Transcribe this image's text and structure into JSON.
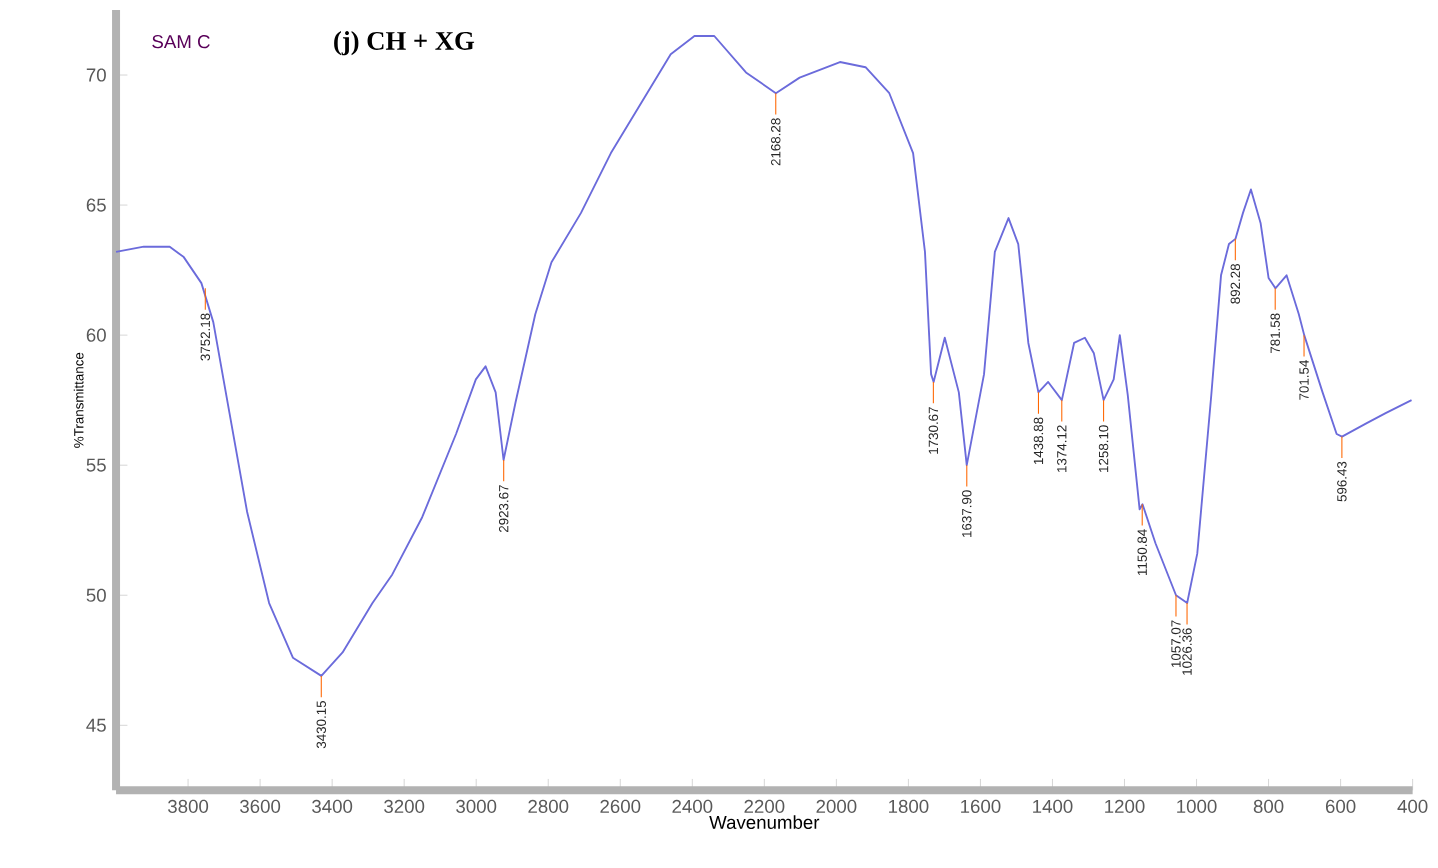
{
  "chart_data": {
    "type": "line",
    "title": "(j) CH + XG",
    "xlabel": "Wavenumber",
    "ylabel": "%Transmittance",
    "xlim": [
      4000,
      400
    ],
    "ylim": [
      42.5,
      72.5
    ],
    "xticks": [
      3800,
      3600,
      3400,
      3200,
      3000,
      2800,
      2600,
      2400,
      2200,
      2000,
      1800,
      1600,
      1400,
      1200,
      1000,
      800,
      600,
      400
    ],
    "yticks": [
      45,
      50,
      55,
      60,
      65,
      70
    ],
    "grid": false,
    "annotations": [
      "SAM C",
      {
        "text": "3752.18",
        "x": 3752.18,
        "y": 61.8
      },
      {
        "text": "3430.15",
        "x": 3430.15,
        "y": 46.9
      },
      {
        "text": "2923.67",
        "x": 2923.67,
        "y": 55.2
      },
      {
        "text": "2168.28",
        "x": 2168.28,
        "y": 69.3
      },
      {
        "text": "1730.67",
        "x": 1730.67,
        "y": 58.2
      },
      {
        "text": "1637.90",
        "x": 1637.9,
        "y": 55.0
      },
      {
        "text": "1438.88",
        "x": 1438.88,
        "y": 57.8
      },
      {
        "text": "1374.12",
        "x": 1374.12,
        "y": 57.5
      },
      {
        "text": "1258.10",
        "x": 1258.1,
        "y": 57.5
      },
      {
        "text": "1150.84",
        "x": 1150.84,
        "y": 53.5
      },
      {
        "text": "1057.07",
        "x": 1057.07,
        "y": 50.0
      },
      {
        "text": "1026.36",
        "x": 1026.36,
        "y": 49.7
      },
      {
        "text": "892.28",
        "x": 892.28,
        "y": 63.7
      },
      {
        "text": "781.58",
        "x": 781.58,
        "y": 61.8
      },
      {
        "text": "701.54",
        "x": 701.54,
        "y": 60.0
      },
      {
        "text": "596.43",
        "x": 596.43,
        "y": 56.1
      }
    ],
    "series": [
      {
        "color": "#6b6bdb",
        "x": [
          4000,
          3923,
          3851,
          3812,
          3763,
          3730,
          3685,
          3636,
          3575,
          3509,
          3430,
          3371,
          3288,
          3233,
          3150,
          3056,
          3001,
          2974,
          2946,
          2924,
          2891,
          2836,
          2791,
          2709,
          2626,
          2543,
          2460,
          2394,
          2339,
          2251,
          2168,
          2102,
          1990,
          1919,
          1853,
          1787,
          1754,
          1737,
          1730,
          1699,
          1660,
          1638,
          1590,
          1560,
          1522,
          1495,
          1467,
          1439,
          1412,
          1374,
          1340,
          1310,
          1285,
          1258,
          1230,
          1213,
          1191,
          1158,
          1150,
          1114,
          1057,
          1026,
          998,
          959,
          932,
          910,
          892,
          871,
          849,
          822,
          800,
          781,
          750,
          716,
          701,
          650,
          611,
          596,
          530,
          475,
          403
        ],
        "values": [
          63.2,
          63.4,
          63.4,
          63.0,
          62.0,
          60.5,
          57.0,
          53.2,
          49.7,
          47.6,
          46.9,
          47.8,
          49.7,
          50.8,
          53.0,
          56.2,
          58.3,
          58.8,
          57.8,
          55.2,
          57.4,
          60.8,
          62.8,
          64.7,
          67.0,
          68.9,
          70.8,
          71.5,
          71.5,
          70.1,
          69.3,
          69.9,
          70.5,
          70.3,
          69.3,
          67.0,
          63.2,
          58.5,
          58.2,
          59.9,
          57.8,
          55.0,
          58.5,
          63.2,
          64.5,
          63.5,
          59.7,
          57.8,
          58.2,
          57.5,
          59.7,
          59.9,
          59.3,
          57.5,
          58.3,
          60.0,
          57.7,
          53.3,
          53.5,
          52.0,
          50.0,
          49.7,
          51.6,
          57.7,
          62.3,
          63.5,
          63.7,
          64.7,
          65.6,
          64.3,
          62.2,
          61.8,
          62.3,
          60.8,
          60.0,
          57.8,
          56.2,
          56.1,
          56.6,
          57.0,
          57.5
        ]
      }
    ]
  }
}
